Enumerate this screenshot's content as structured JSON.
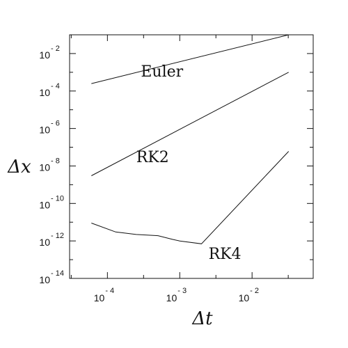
{
  "chart_data": {
    "type": "line",
    "x_scale": "log",
    "y_scale": "log",
    "xlim": [
      3e-05,
      0.07
    ],
    "ylim": [
      1e-14,
      0.1
    ],
    "xlabel": "Δt",
    "ylabel": "Δx",
    "x_ticks": [
      {
        "value": 0.0001,
        "mantissa": "10",
        "exponent": "- 4"
      },
      {
        "value": 0.001,
        "mantissa": "10",
        "exponent": "- 3"
      },
      {
        "value": 0.01,
        "mantissa": "10",
        "exponent": "- 2"
      }
    ],
    "y_ticks": [
      {
        "value": 0.01,
        "mantissa": "10",
        "exponent": "- 2"
      },
      {
        "value": 0.0001,
        "mantissa": "10",
        "exponent": "- 4"
      },
      {
        "value": 1e-06,
        "mantissa": "10",
        "exponent": "- 6"
      },
      {
        "value": 1e-08,
        "mantissa": "10",
        "exponent": "- 8"
      },
      {
        "value": 1e-10,
        "mantissa": "10",
        "exponent": "- 10"
      },
      {
        "value": 1e-12,
        "mantissa": "10",
        "exponent": "- 12"
      },
      {
        "value": 1e-14,
        "mantissa": "10",
        "exponent": "- 14"
      }
    ],
    "grid": false,
    "legend": "none",
    "series": [
      {
        "name": "Euler",
        "x": [
          6e-05,
          0.032
        ],
        "y": [
          0.00025,
          0.1
        ]
      },
      {
        "name": "RK2",
        "x": [
          6e-05,
          0.032
        ],
        "y": [
          3e-09,
          0.001
        ]
      },
      {
        "name": "RK4",
        "x": [
          6e-05,
          0.00013,
          0.00025,
          0.0005,
          0.0008,
          0.001,
          0.002,
          0.032
        ],
        "y": [
          9e-12,
          3e-12,
          2.2e-12,
          1.9e-12,
          1.2e-12,
          1e-12,
          7e-13,
          6e-08
        ]
      }
    ],
    "series_labels": [
      {
        "text": "Euler",
        "x": 0.00029,
        "y": 0.0006
      },
      {
        "text": "RK2",
        "x": 0.00025,
        "y": 1.6e-08
      },
      {
        "text": "RK4",
        "x": 0.0025,
        "y": 1.1e-13
      }
    ]
  }
}
